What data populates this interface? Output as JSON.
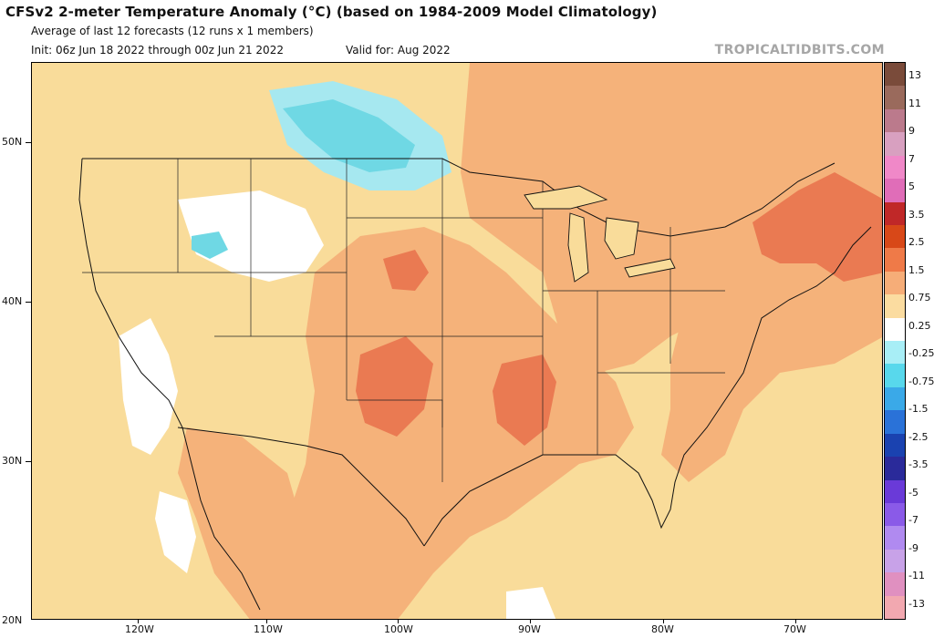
{
  "header": {
    "title": "CFSv2 2-meter Temperature Anomaly (°C) (based on 1984-2009 Model Climatology)",
    "subtitle": "Average of last 12 forecasts (12 runs x 1 members)",
    "init": "Init: 06z Jun 18 2022 through 00z Jun 21 2022",
    "valid": "Valid for: Aug 2022",
    "brand": "TROPICALTIDBITS.COM"
  },
  "map": {
    "latitude_labels": [
      "50N",
      "40N",
      "30N",
      "20N"
    ],
    "longitude_labels": [
      "120W",
      "110W",
      "100W",
      "90W",
      "80W",
      "70W"
    ],
    "region": "Contiguous United States and surroundings",
    "colors": {
      "slight_warm": "#f9dc9a",
      "warm": "#f5b27a",
      "very_warm": "#ea7a52",
      "near_zero": "#ffffff",
      "cool": "#6fd8e4",
      "cooler": "#a6e8f0"
    }
  },
  "colorbar": {
    "levels": [
      "13",
      "11",
      "9",
      "7",
      "5",
      "3.5",
      "2.5",
      "1.5",
      "0.75",
      "0.25",
      "-0.25",
      "-0.75",
      "-1.5",
      "-2.5",
      "-3.5",
      "-5",
      "-7",
      "-9",
      "-11",
      "-13"
    ],
    "colors": [
      "#7a4b3a",
      "#9a6a5c",
      "#bb7a8c",
      "#d8a0c0",
      "#f088c8",
      "#e06db8",
      "#c02828",
      "#d84818",
      "#ef7a48",
      "#f6ad78",
      "#fbdca0",
      "#ffffff",
      "#a8eef6",
      "#58d8ec",
      "#3aa9e8",
      "#2a72d8",
      "#1a42b0",
      "#2a2a9a",
      "#6a3ad8",
      "#8a5ae8",
      "#b08af0",
      "#c8a2e8",
      "#e090c0",
      "#f2a8b0"
    ]
  }
}
